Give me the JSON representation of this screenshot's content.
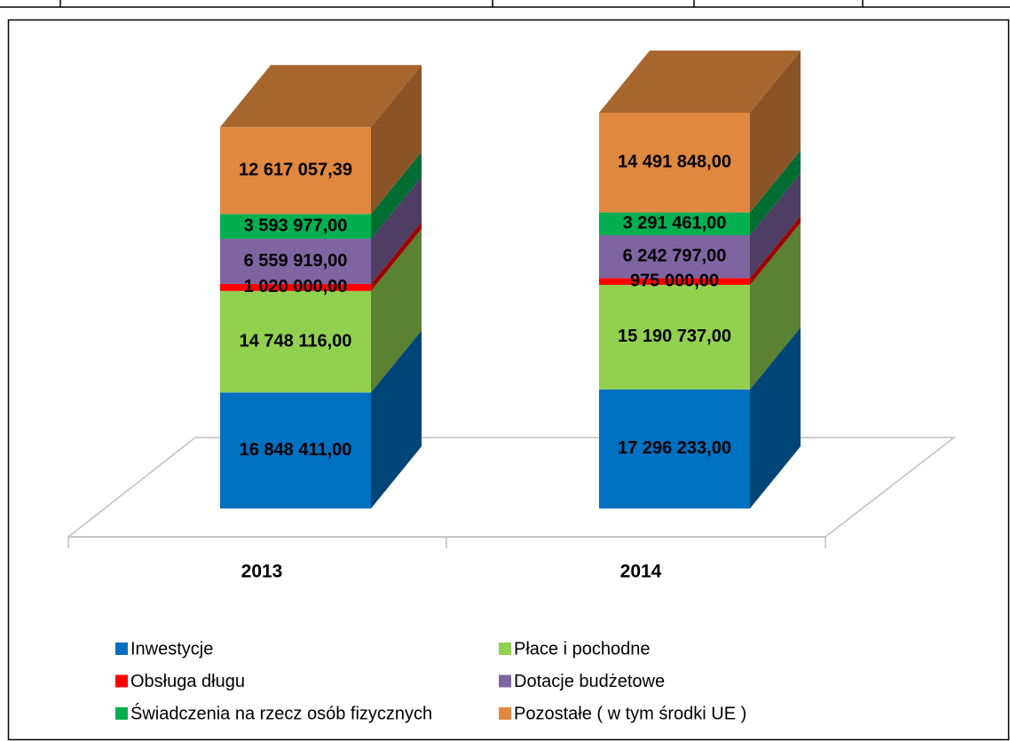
{
  "chart_data": {
    "type": "bar3d-stacked",
    "categories": [
      "2013",
      "2014"
    ],
    "series": [
      {
        "name": "Inwestycje",
        "color": "#0070c0",
        "values": [
          16848411.0,
          17296233.0
        ],
        "value_labels": [
          "16 848 411,00",
          "17 296 233,00"
        ]
      },
      {
        "name": "Płace i pochodne",
        "color": "#92d050",
        "values": [
          14748116.0,
          15190737.0
        ],
        "value_labels": [
          "14 748 116,00",
          "15 190 737,00"
        ]
      },
      {
        "name": "Obsługa długu",
        "color": "#ff0000",
        "values": [
          1020000.0,
          975000.0
        ],
        "value_labels": [
          "1 020 000,00",
          "975 000,00"
        ]
      },
      {
        "name": "Dotacje budżetowe",
        "color": "#8064a2",
        "values": [
          6559919.0,
          6242797.0
        ],
        "value_labels": [
          "6 559 919,00",
          "6 242 797,00"
        ]
      },
      {
        "name": "Świadczenia na rzecz osób fizycznych",
        "color": "#00b050",
        "values": [
          3593977.0,
          3291461.0
        ],
        "value_labels": [
          "3 593 977,00",
          "3 291 461,00"
        ]
      },
      {
        "name": "Pozostałe ( w tym środki UE )",
        "color": "#e0883f",
        "values": [
          12617057.39,
          14491848.0
        ],
        "value_labels": [
          "12 617 057,39",
          "14 491 848,00"
        ]
      }
    ]
  }
}
